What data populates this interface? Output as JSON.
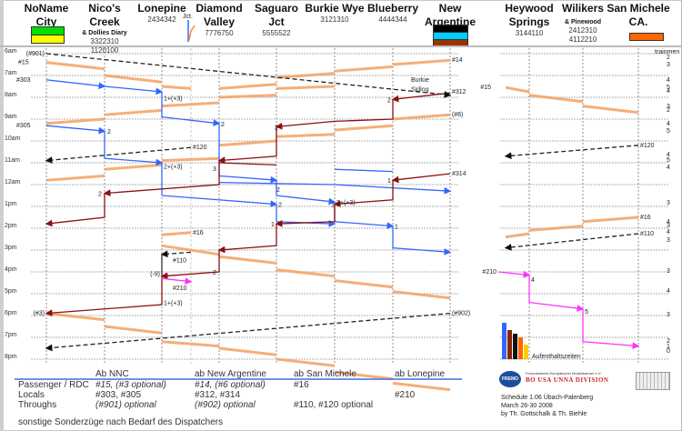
{
  "stations": [
    {
      "name_1": "NoName",
      "name_2": "City",
      "numbers": [],
      "sub": "",
      "colors": [
        "#00dd00",
        "#ffff00"
      ]
    },
    {
      "name_1": "Nico's",
      "name_2": "Creek",
      "sub": "& Dollies Diary",
      "numbers": [
        "3322310",
        "1120100"
      ],
      "colors": []
    },
    {
      "name_1": "Lonepine",
      "name_2": "",
      "sub": "",
      "numbers": [
        "2434342"
      ],
      "colors": []
    },
    {
      "name_1": "Diamond",
      "name_2": "Valley",
      "sub": "",
      "numbers": [
        "7776750"
      ],
      "colors": []
    },
    {
      "name_1": "Saguaro",
      "name_2": "Jct",
      "sub": "",
      "numbers": [
        "5555522"
      ],
      "colors": []
    },
    {
      "name_1": "Burkie Wye",
      "name_2": "",
      "sub": "",
      "numbers": [
        "3121310"
      ],
      "colors": []
    },
    {
      "name_1": "Blueberry",
      "name_2": "",
      "sub": "",
      "numbers": [
        "4444344"
      ],
      "colors": []
    },
    {
      "name_1": "New",
      "name_2": "Argentine",
      "sub": "",
      "numbers": [],
      "colors": [
        "#000000",
        "#00ccff",
        "#993300"
      ]
    },
    {
      "name_1": "Heywood",
      "name_2": "Springs",
      "sub": "",
      "numbers": [
        "3144110"
      ],
      "colors": []
    },
    {
      "name_1": "Wilikers",
      "name_2": "",
      "sub": "& Pinewood",
      "numbers": [
        "2412310",
        "4112210"
      ],
      "colors": []
    },
    {
      "name_1": "San Michele",
      "name_2": "CA.",
      "sub": "",
      "numbers": [],
      "colors": [
        "#ff6600"
      ]
    }
  ],
  "junction_label": "Jct.",
  "hours": [
    "6am",
    "7am",
    "8am",
    "9am",
    "10am",
    "11am",
    "12am",
    "1pm",
    "2pm",
    "3pm",
    "4pm",
    "5pm",
    "6pm",
    "7pm",
    "8pm"
  ],
  "trainmen_label": "trainmen",
  "trainmen_counts": [
    "2",
    "3",
    "4",
    "5",
    "4",
    "3",
    "2",
    "4",
    "5",
    "4",
    "5",
    "4",
    "3",
    "4",
    "3",
    "4",
    "3",
    "3",
    "4",
    "3",
    "2",
    "1",
    "0"
  ],
  "annotations": {
    "burkie_siding": "Burkie\nSiding",
    "trains": [
      "(#901)",
      "#15",
      "#303",
      "#305",
      "#120",
      "#14",
      "#312",
      "(#6)",
      "#314",
      "#16",
      "#110",
      "#210",
      "(-9)",
      "(#3)",
      "(#902)"
    ],
    "stop_labels": [
      "1+(+3)",
      "2",
      "2",
      "2+(+3)",
      "3",
      "2",
      "1",
      "2",
      "1",
      "1",
      "2",
      "1+(+3)",
      "2",
      "4",
      "5"
    ]
  },
  "colors": {
    "passenger": "#f5a060",
    "local_blue": "#3366ff",
    "local_red": "#8b1010",
    "through": "#222222",
    "local_magenta": "#ff33ff",
    "grid": "#999999"
  },
  "aufenthalt_label": "Aufenthaltszeiten",
  "aufenthalt_bars": [
    {
      "color": "#3366ff",
      "value": 5
    },
    {
      "color": "#8b2500",
      "value": 4
    },
    {
      "color": "#111111",
      "value": 3.5
    },
    {
      "color": "#ff6600",
      "value": 3
    },
    {
      "color": "#ffcc00",
      "value": 2
    }
  ],
  "legend": {
    "columns": [
      "Ab NNC",
      "ab New Argentine",
      "ab San Michele",
      "ab Lonepine"
    ],
    "rows": [
      {
        "label": "Passenger / RDC",
        "cells": [
          "#15,  (#3 optional)",
          "#14, (#6 optional)",
          "#16",
          ""
        ]
      },
      {
        "label": "Locals",
        "cells": [
          "#303, #305",
          "#312, #314",
          "",
          "#210"
        ]
      },
      {
        "label": "Throughs",
        "cells": [
          "(#901) optional",
          "(#902) optional",
          "#110, #120 optional",
          ""
        ]
      }
    ],
    "note": "sonstige Sonderzüge nach Bedarf des Dispatchers"
  },
  "logo": {
    "badge": "FREMO",
    "org": "Freundeskreis Europäischer Modellbahner e.V.",
    "division": "BO USA UNNA DIVISION"
  },
  "credits": {
    "line1": "Schedule 1.06 Übach-Palenberg",
    "line2": "March 26-30 2008",
    "line3": "by Th. Gottschalk & Th. Biehle"
  }
}
